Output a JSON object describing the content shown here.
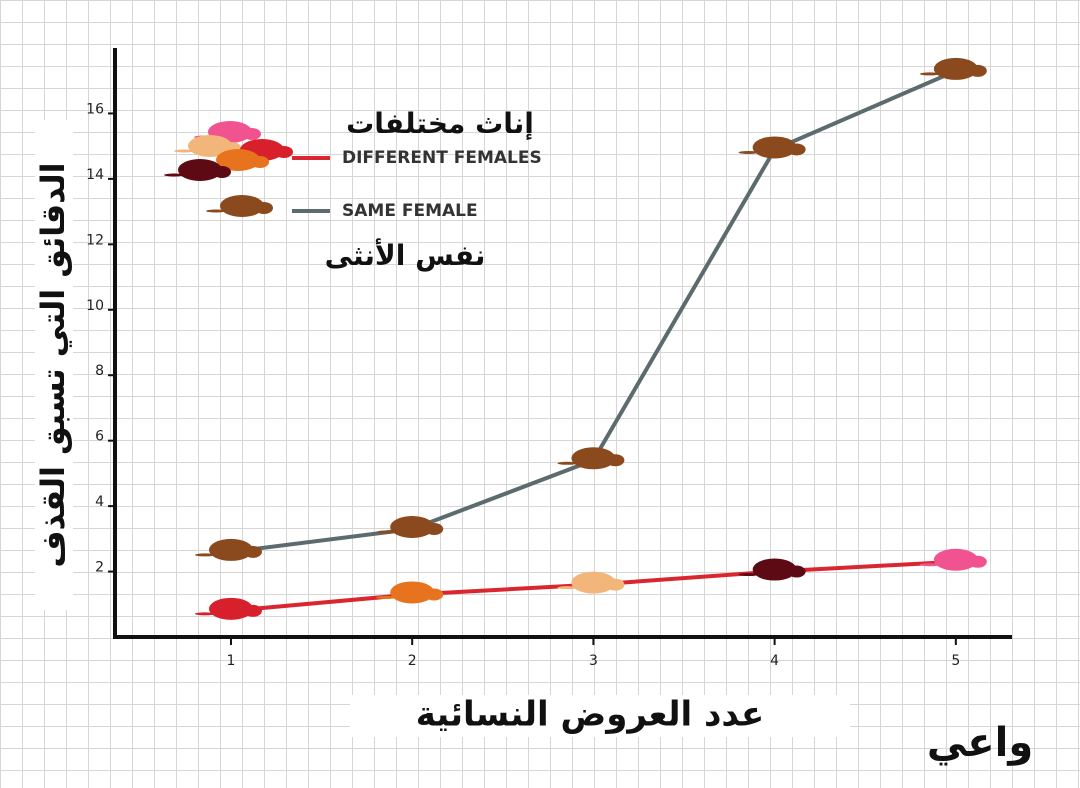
{
  "chart_data": {
    "type": "line",
    "y_label": "الدقائق التي تسبق القذف",
    "x_label": "عدد العروض النسائية",
    "annotations": [
      "إناث مختلفات",
      "نفس الأنثى"
    ],
    "brand": "واعي",
    "x": [
      1,
      2,
      3,
      4,
      5
    ],
    "xlim": [
      0.36,
      5.31
    ],
    "xticks": [
      1,
      2,
      3,
      4,
      5
    ],
    "ylim": [
      0,
      18
    ],
    "yticks": [
      2,
      4,
      6,
      8,
      10,
      12,
      14,
      16
    ],
    "series": [
      {
        "name": "DIFFERENT FEMALES",
        "color": "#d9262f",
        "values": [
          0.8,
          1.3,
          1.6,
          2.0,
          2.3
        ],
        "point_colors": [
          "#d8202c",
          "#e8731f",
          "#f2b67a",
          "#5e0a14",
          "#f0538f"
        ]
      },
      {
        "name": "SAME FEMALE",
        "color": "#5b6b6e",
        "values": [
          2.6,
          3.3,
          5.4,
          14.9,
          17.3
        ],
        "point_colors": [
          "#8b4a1e",
          "#8b4a1e",
          "#8b4a1e",
          "#8b4a1e",
          "#8b4a1e"
        ]
      }
    ]
  }
}
